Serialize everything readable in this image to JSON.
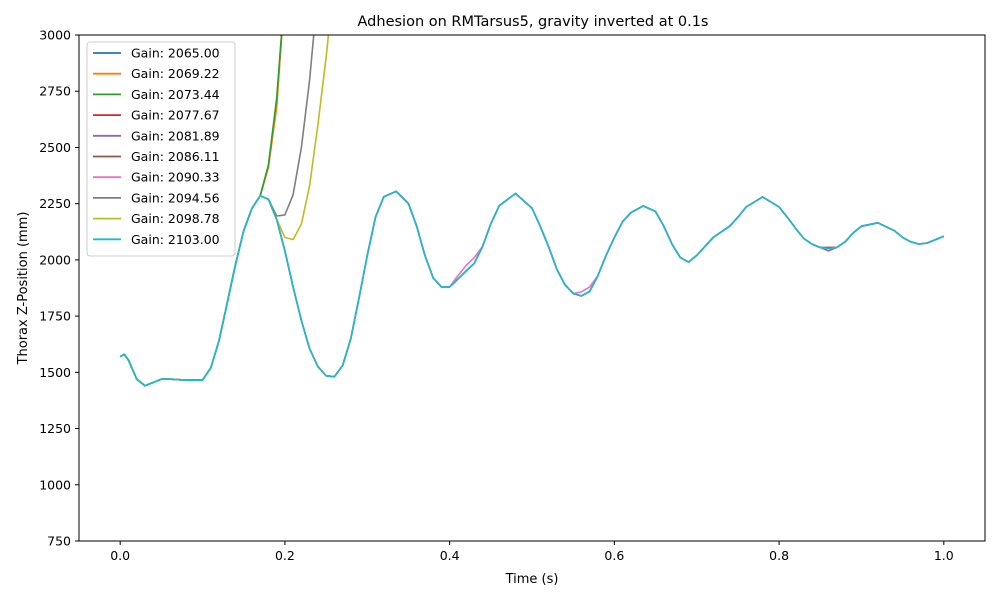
{
  "chart_data": {
    "type": "line",
    "title": "Adhesion on RMTarsus5, gravity inverted at 0.1s",
    "xlabel": "Time (s)",
    "ylabel": "Thorax Z-Position (mm)",
    "xlim": [
      -0.05,
      1.05
    ],
    "ylim": [
      750,
      3000
    ],
    "xticks": [
      0.0,
      0.2,
      0.4,
      0.6,
      0.8,
      1.0
    ],
    "xtick_labels": [
      "0.0",
      "0.2",
      "0.4",
      "0.6",
      "0.8",
      "1.0"
    ],
    "yticks": [
      750,
      1000,
      1250,
      1500,
      1750,
      2000,
      2250,
      2500,
      2750,
      3000
    ],
    "ytick_labels": [
      "750",
      "1000",
      "1250",
      "1500",
      "1750",
      "2000",
      "2250",
      "2500",
      "2750",
      "3000"
    ],
    "legend_position": "upper-left",
    "grid": false,
    "x": [
      0.0,
      0.005,
      0.01,
      0.02,
      0.03,
      0.04,
      0.05,
      0.06,
      0.08,
      0.1,
      0.11,
      0.12,
      0.13,
      0.14,
      0.15,
      0.16,
      0.17,
      0.18,
      0.19,
      0.2,
      0.21,
      0.22,
      0.23,
      0.24,
      0.25,
      0.26,
      0.27,
      0.28,
      0.29,
      0.3,
      0.31,
      0.32,
      0.335,
      0.35,
      0.36,
      0.37,
      0.38,
      0.39,
      0.4,
      0.41,
      0.42,
      0.43,
      0.44,
      0.45,
      0.46,
      0.48,
      0.5,
      0.51,
      0.52,
      0.53,
      0.54,
      0.55,
      0.56,
      0.57,
      0.58,
      0.59,
      0.6,
      0.61,
      0.62,
      0.635,
      0.65,
      0.66,
      0.67,
      0.68,
      0.69,
      0.7,
      0.71,
      0.72,
      0.73,
      0.74,
      0.75,
      0.76,
      0.78,
      0.8,
      0.81,
      0.82,
      0.83,
      0.84,
      0.85,
      0.86,
      0.87,
      0.88,
      0.89,
      0.9,
      0.92,
      0.94,
      0.95,
      0.96,
      0.97,
      0.98,
      0.99,
      1.0
    ],
    "base_y": [
      1570,
      1580,
      1555,
      1470,
      1440,
      1455,
      1470,
      1470,
      1465,
      1465,
      1520,
      1640,
      1810,
      1980,
      2130,
      2230,
      2285,
      2270,
      2180,
      2040,
      1880,
      1730,
      1605,
      1525,
      1485,
      1480,
      1530,
      1650,
      1830,
      2020,
      2190,
      2280,
      2305,
      2250,
      2150,
      2020,
      1920,
      1880,
      1880,
      1915,
      1950,
      1985,
      2060,
      2160,
      2240,
      2295,
      2230,
      2150,
      2060,
      1960,
      1890,
      1850,
      1840,
      1860,
      1930,
      2020,
      2100,
      2170,
      2210,
      2240,
      2215,
      2150,
      2070,
      2010,
      1990,
      2020,
      2060,
      2100,
      2125,
      2150,
      2190,
      2235,
      2280,
      2235,
      2190,
      2140,
      2095,
      2070,
      2055,
      2050,
      2055,
      2080,
      2120,
      2150,
      2165,
      2130,
      2100,
      2080,
      2070,
      2075,
      2090,
      2105
    ],
    "series": [
      {
        "name": "Gain: 2065.00",
        "color": "#1f77b4",
        "diverge_at": 0.17,
        "diverge_x": [
          0.18,
          0.19,
          0.2
        ],
        "diverge_y": [
          2420,
          2700,
          3200
        ]
      },
      {
        "name": "Gain: 2069.22",
        "color": "#ff7f0e",
        "diverge_at": 0.17,
        "diverge_x": [
          0.18,
          0.19,
          0.2
        ],
        "diverge_y": [
          2410,
          2680,
          3200
        ]
      },
      {
        "name": "Gain: 2073.44",
        "color": "#2ca02c",
        "diverge_at": 0.17,
        "diverge_x": [
          0.18,
          0.19,
          0.2
        ],
        "diverge_y": [
          2420,
          2720,
          3200
        ]
      },
      {
        "name": "Gain: 2077.67",
        "color": "#d62728",
        "diverge_at": 1.1,
        "bump_x": [
          0.86
        ],
        "bump_y": [
          2055
        ]
      },
      {
        "name": "Gain: 2081.89",
        "color": "#9467bd",
        "diverge_at": 1.1,
        "bump_x": [
          0.86
        ],
        "bump_y": [
          2040
        ]
      },
      {
        "name": "Gain: 2086.11",
        "color": "#8c564b",
        "diverge_at": 1.1,
        "bump_x": [
          0.86
        ],
        "bump_y": [
          2055
        ]
      },
      {
        "name": "Gain: 2090.33",
        "color": "#e377c2",
        "diverge_at": 1.1,
        "bump_x": [
          0.41,
          0.42,
          0.43,
          0.56,
          0.57
        ],
        "bump_y": [
          1930,
          1975,
          2010,
          1858,
          1880
        ]
      },
      {
        "name": "Gain: 2094.56",
        "color": "#7f7f7f",
        "diverge_at": 0.18,
        "diverge_x": [
          0.19,
          0.2,
          0.21,
          0.22,
          0.23,
          0.24
        ],
        "diverge_y": [
          2195,
          2200,
          2290,
          2500,
          2800,
          3200
        ]
      },
      {
        "name": "Gain: 2098.78",
        "color": "#bcbd22",
        "diverge_at": 0.19,
        "diverge_x": [
          0.2,
          0.21,
          0.22,
          0.23,
          0.24,
          0.25,
          0.26
        ],
        "diverge_y": [
          2100,
          2090,
          2160,
          2330,
          2600,
          2900,
          3250
        ]
      },
      {
        "name": "Gain: 2103.00",
        "color": "#17becf",
        "diverge_at": 1.1
      }
    ]
  }
}
